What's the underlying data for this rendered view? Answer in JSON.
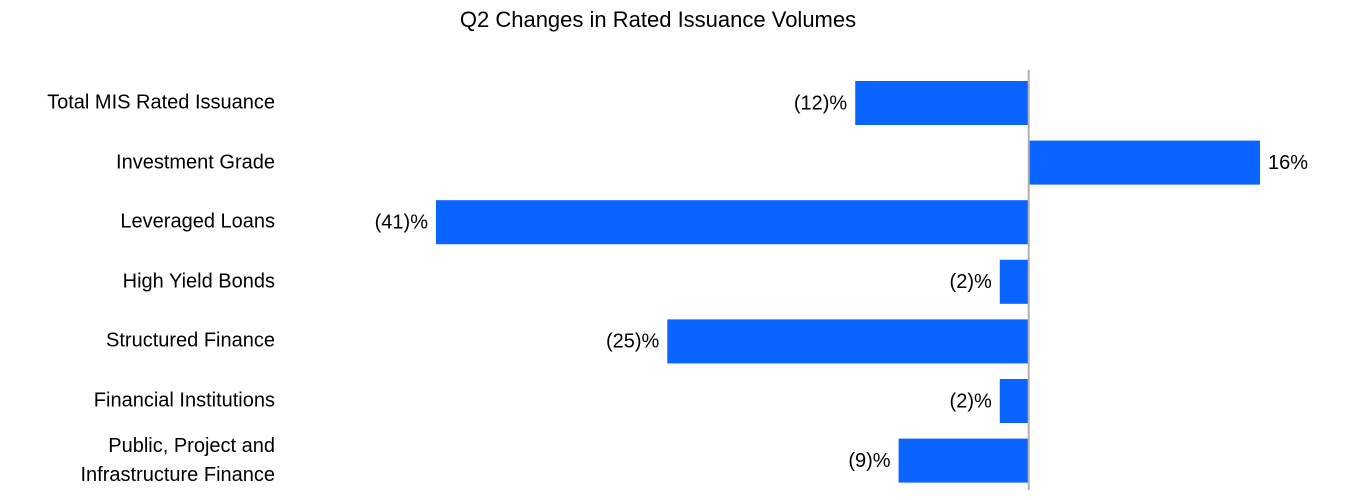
{
  "chart_data": {
    "type": "hbar",
    "title": "Q2 Changes in Rated Issuance Volumes",
    "categories": [
      "Total MIS Rated Issuance",
      "Investment Grade",
      "Leveraged Loans",
      "High Yield Bonds",
      "Structured Finance",
      "Financial Institutions",
      "Public, Project and\nInfrastructure Finance"
    ],
    "values": [
      -12,
      16,
      -41,
      -2,
      -25,
      -2,
      -9
    ],
    "value_labels": [
      "(12)%",
      "16%",
      "(41)%",
      "(2)%",
      "(25)%",
      "(2)%",
      "(9)%"
    ],
    "color": "#0a64ff",
    "xlim": [
      -41,
      16
    ]
  }
}
